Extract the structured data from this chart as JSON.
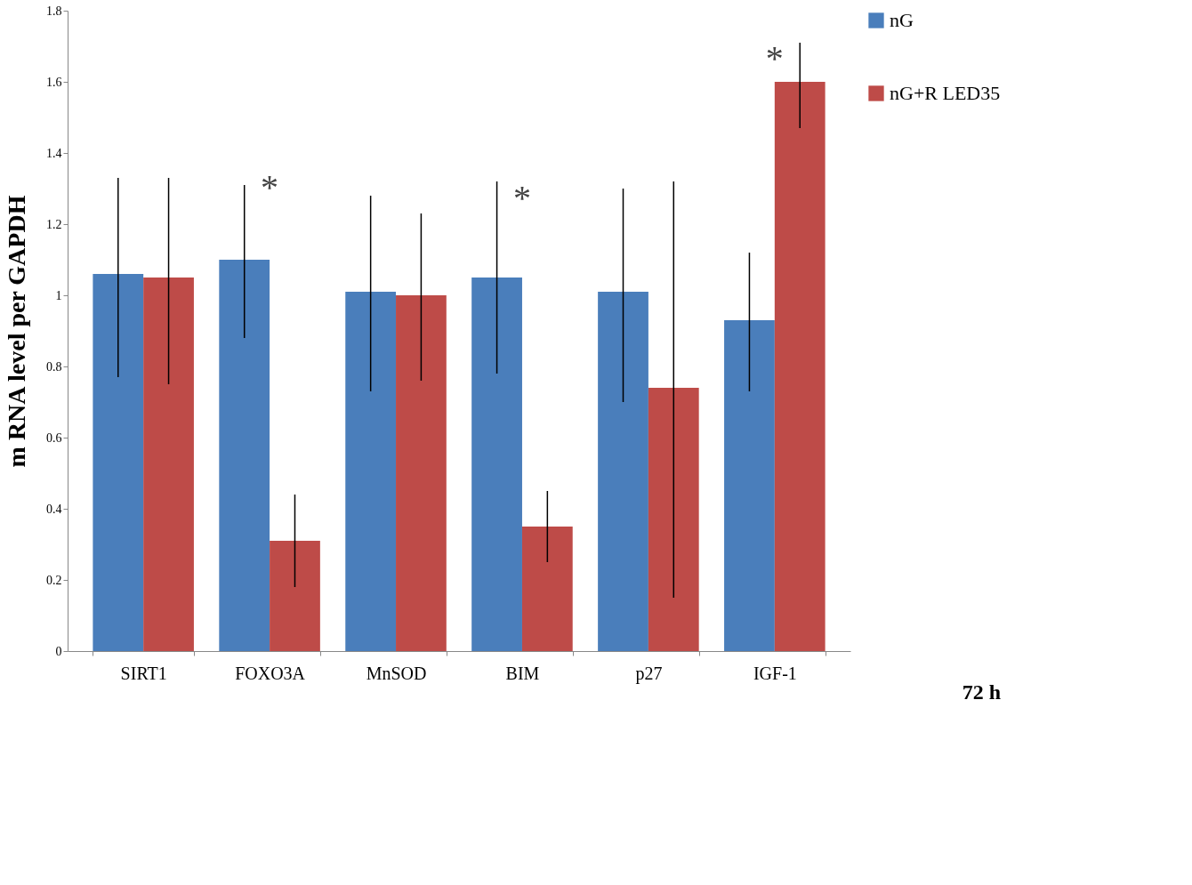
{
  "chart_data": {
    "type": "bar",
    "ylabel": "m RNA level per GAPDH",
    "categories": [
      "SIRT1",
      "FOXO3A",
      "MnSOD",
      "BIM",
      "p27",
      "IGF-1"
    ],
    "series": [
      {
        "name": "nG",
        "color": "#4a7ebb",
        "values": [
          1.06,
          1.1,
          1.01,
          1.05,
          1.01,
          0.93
        ],
        "errors": [
          [
            0.77,
            1.33
          ],
          [
            0.88,
            1.31
          ],
          [
            0.73,
            1.28
          ],
          [
            0.78,
            1.32
          ],
          [
            0.7,
            1.3
          ],
          [
            0.73,
            1.12
          ]
        ]
      },
      {
        "name": "nG+R LED35",
        "color": "#be4b48",
        "values": [
          1.05,
          0.31,
          1.0,
          0.35,
          0.74,
          1.6
        ],
        "errors": [
          [
            0.75,
            1.33
          ],
          [
            0.18,
            0.44
          ],
          [
            0.76,
            1.23
          ],
          [
            0.25,
            0.45
          ],
          [
            0.15,
            1.32
          ],
          [
            1.47,
            1.71
          ]
        ]
      }
    ],
    "ylim": [
      0,
      1.8
    ],
    "yticks": [
      0,
      0.2,
      0.4,
      0.6,
      0.8,
      1,
      1.2,
      1.4,
      1.6,
      1.8
    ],
    "grid": false,
    "legend": "right",
    "annotations": [
      "*",
      "*",
      "*",
      "72 h"
    ]
  }
}
